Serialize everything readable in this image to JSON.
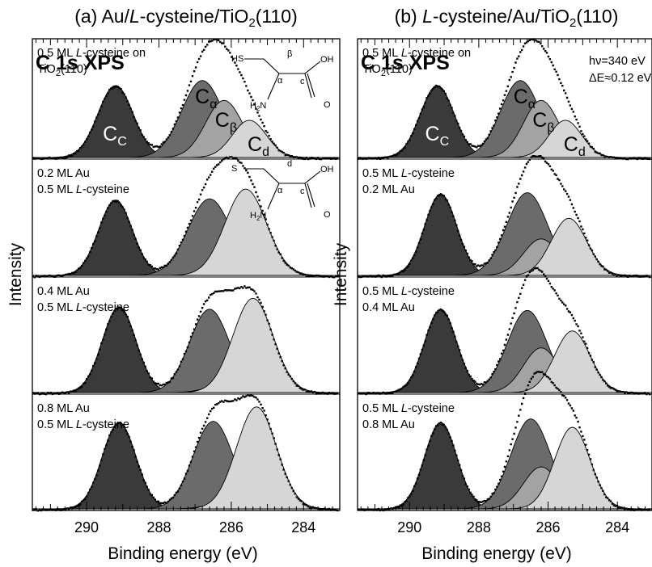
{
  "figure": {
    "binding_energy_axis_label": "Binding energy (eV)",
    "intensity_axis_label": "Intensity"
  },
  "chart_data": [
    {
      "type": "area",
      "panel_label": "(a)",
      "title_parts": {
        "pre": "Au/",
        "italic": "L",
        "mid": "-cysteine/TiO",
        "sub": "2",
        "post": "(110)"
      },
      "header": "C 1s XPS",
      "xlabel": "Binding energy (eV)",
      "ylabel": "Intensity",
      "xlim": [
        291.5,
        283
      ],
      "x_reversed": true,
      "xticks": [
        290,
        288,
        286,
        284
      ],
      "spectra": [
        {
          "label_lines": [
            [
              {
                "t": "0.5 ML "
              },
              {
                "t": "L",
                "i": true
              },
              {
                "t": "-cysteine on"
              }
            ],
            [
              {
                "t": "TiO"
              },
              {
                "t": "2",
                "sub": true
              },
              {
                "t": "(110)"
              }
            ]
          ],
          "components": [
            {
              "name": "Cc",
              "center": 289.2,
              "height": 0.58,
              "fwhm": 1.15,
              "color": "#3a3a3a"
            },
            {
              "name": "Cα",
              "center": 286.8,
              "height": 0.62,
              "fwhm": 1.35,
              "color": "#6b6b6b"
            },
            {
              "name": "Cβ",
              "center": 286.2,
              "height": 0.46,
              "fwhm": 1.2,
              "color": "#a3a3a3"
            },
            {
              "name": "Cd",
              "center": 285.5,
              "height": 0.3,
              "fwhm": 1.1,
              "color": "#d6d6d6"
            }
          ]
        },
        {
          "label_lines": [
            [
              {
                "t": "0.2 ML Au"
              }
            ],
            [
              {
                "t": "0.5 ML "
              },
              {
                "t": "L",
                "i": true
              },
              {
                "t": "-cysteine"
              }
            ]
          ],
          "components": [
            {
              "name": "Cc",
              "center": 289.2,
              "height": 0.62,
              "fwhm": 1.1,
              "color": "#3a3a3a"
            },
            {
              "name": "Cα",
              "center": 286.6,
              "height": 0.63,
              "fwhm": 1.4,
              "color": "#6b6b6b"
            },
            {
              "name": "Cβ",
              "center": 286.3,
              "height": 0.05,
              "fwhm": 1.1,
              "color": "#a3a3a3"
            },
            {
              "name": "Cd",
              "center": 285.6,
              "height": 0.71,
              "fwhm": 1.35,
              "color": "#d6d6d6"
            }
          ]
        },
        {
          "label_lines": [
            [
              {
                "t": "0.4 ML Au"
              }
            ],
            [
              {
                "t": "0.5 ML "
              },
              {
                "t": "L",
                "i": true
              },
              {
                "t": "-cysteine"
              }
            ]
          ],
          "components": [
            {
              "name": "Cc",
              "center": 289.1,
              "height": 0.71,
              "fwhm": 1.1,
              "color": "#3a3a3a"
            },
            {
              "name": "Cα",
              "center": 286.6,
              "height": 0.69,
              "fwhm": 1.3,
              "color": "#6b6b6b"
            },
            {
              "name": "Cβ",
              "center": 286.3,
              "height": 0.05,
              "fwhm": 1.1,
              "color": "#a3a3a3"
            },
            {
              "name": "Cd",
              "center": 285.4,
              "height": 0.78,
              "fwhm": 1.3,
              "color": "#d6d6d6"
            }
          ]
        },
        {
          "label_lines": [
            [
              {
                "t": "0.8 ML Au"
              }
            ],
            [
              {
                "t": "0.5 ML "
              },
              {
                "t": "L",
                "i": true
              },
              {
                "t": "-cysteine"
              }
            ]
          ],
          "components": [
            {
              "name": "Cc",
              "center": 289.1,
              "height": 0.72,
              "fwhm": 1.1,
              "color": "#3a3a3a"
            },
            {
              "name": "Cα",
              "center": 286.5,
              "height": 0.73,
              "fwhm": 1.3,
              "color": "#6b6b6b"
            },
            {
              "name": "Cβ",
              "center": 286.2,
              "height": 0.05,
              "fwhm": 1.1,
              "color": "#a3a3a3"
            },
            {
              "name": "Cd",
              "center": 285.3,
              "height": 0.85,
              "fwhm": 1.3,
              "color": "#d6d6d6"
            }
          ]
        }
      ],
      "annotations": {
        "molecule_top": {
          "thiol": "HS",
          "beta": "β",
          "alpha": "α",
          "amine": "H2N",
          "carboxyl_c": "c",
          "oh": "OH",
          "o": "O"
        },
        "molecule_second": {
          "thiolate": "S",
          "d": "d",
          "alpha": "α",
          "amine": "H2N",
          "carboxyl_c": "c",
          "oh": "OH",
          "o": "O"
        }
      }
    },
    {
      "type": "area",
      "panel_label": "(b)",
      "title_parts": {
        "pre": "",
        "italic": "L",
        "mid": "-cysteine/Au/TiO",
        "sub": "2",
        "post": "(110)"
      },
      "header": "C 1s XPS",
      "xlabel": "Binding energy (eV)",
      "ylabel": "Intensity",
      "xlim": [
        291.5,
        283
      ],
      "x_reversed": true,
      "xticks": [
        290,
        288,
        286,
        284
      ],
      "source_info": [
        "hν=340 eV",
        "ΔE≈0.12 eV"
      ],
      "spectra": [
        {
          "label_lines": [
            [
              {
                "t": "0.5 ML "
              },
              {
                "t": "L",
                "i": true
              },
              {
                "t": "-cysteine on"
              }
            ],
            [
              {
                "t": "TiO"
              },
              {
                "t": "2",
                "sub": true
              },
              {
                "t": "(110)"
              }
            ]
          ],
          "components": [
            {
              "name": "Cc",
              "center": 289.2,
              "height": 0.58,
              "fwhm": 1.15,
              "color": "#3a3a3a"
            },
            {
              "name": "Cα",
              "center": 286.8,
              "height": 0.62,
              "fwhm": 1.35,
              "color": "#6b6b6b"
            },
            {
              "name": "Cβ",
              "center": 286.2,
              "height": 0.46,
              "fwhm": 1.2,
              "color": "#a3a3a3"
            },
            {
              "name": "Cd",
              "center": 285.5,
              "height": 0.3,
              "fwhm": 1.1,
              "color": "#d6d6d6"
            }
          ]
        },
        {
          "label_lines": [
            [
              {
                "t": "0.5 ML "
              },
              {
                "t": "L",
                "i": true
              },
              {
                "t": "-cysteine"
              }
            ],
            [
              {
                "t": "0.2 ML Au"
              }
            ]
          ],
          "components": [
            {
              "name": "Cc",
              "center": 289.1,
              "height": 0.67,
              "fwhm": 1.1,
              "color": "#3a3a3a"
            },
            {
              "name": "Cα",
              "center": 286.6,
              "height": 0.68,
              "fwhm": 1.4,
              "color": "#6b6b6b"
            },
            {
              "name": "Cβ",
              "center": 286.2,
              "height": 0.3,
              "fwhm": 1.2,
              "color": "#a3a3a3"
            },
            {
              "name": "Cd",
              "center": 285.4,
              "height": 0.47,
              "fwhm": 1.2,
              "color": "#d6d6d6"
            }
          ]
        },
        {
          "label_lines": [
            [
              {
                "t": "0.5 ML "
              },
              {
                "t": "L",
                "i": true
              },
              {
                "t": "-cysteine"
              }
            ],
            [
              {
                "t": "0.4 ML Au"
              }
            ]
          ],
          "components": [
            {
              "name": "Cc",
              "center": 289.1,
              "height": 0.69,
              "fwhm": 1.1,
              "color": "#3a3a3a"
            },
            {
              "name": "Cα",
              "center": 286.6,
              "height": 0.68,
              "fwhm": 1.35,
              "color": "#6b6b6b"
            },
            {
              "name": "Cβ",
              "center": 286.2,
              "height": 0.37,
              "fwhm": 1.2,
              "color": "#a3a3a3"
            },
            {
              "name": "Cd",
              "center": 285.3,
              "height": 0.51,
              "fwhm": 1.2,
              "color": "#d6d6d6"
            }
          ]
        },
        {
          "label_lines": [
            [
              {
                "t": "0.5 ML "
              },
              {
                "t": "L",
                "i": true
              },
              {
                "t": "-cysteine"
              }
            ],
            [
              {
                "t": "0.8 ML Au"
              }
            ]
          ],
          "components": [
            {
              "name": "Cc",
              "center": 289.1,
              "height": 0.72,
              "fwhm": 1.1,
              "color": "#3a3a3a"
            },
            {
              "name": "Cα",
              "center": 286.5,
              "height": 0.75,
              "fwhm": 1.35,
              "color": "#6b6b6b"
            },
            {
              "name": "Cβ",
              "center": 286.2,
              "height": 0.35,
              "fwhm": 1.2,
              "color": "#a3a3a3"
            },
            {
              "name": "Cd",
              "center": 285.3,
              "height": 0.68,
              "fwhm": 1.2,
              "color": "#d6d6d6"
            }
          ]
        }
      ]
    }
  ]
}
